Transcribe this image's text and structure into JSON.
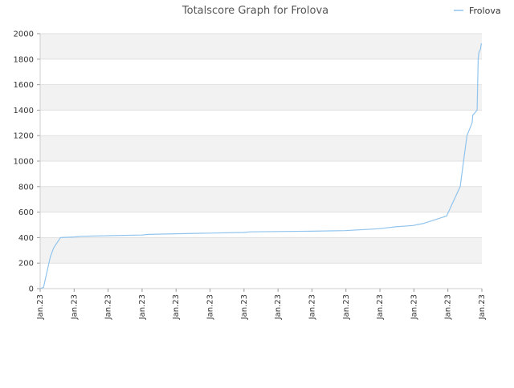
{
  "chart_data": {
    "type": "line",
    "title": "Totalscore Graph for Frolova",
    "xlabel": "",
    "ylabel": "",
    "ylim": [
      0,
      2000
    ],
    "yticks": [
      0,
      200,
      400,
      600,
      800,
      1000,
      1200,
      1400,
      1600,
      1800,
      2000
    ],
    "xtick_labels": [
      "Jan.23",
      "Jan.23",
      "Jan.23",
      "Jan.23",
      "Jan.23",
      "Jan.23",
      "Jan.23",
      "Jan.23",
      "Jan.23",
      "Jan.23",
      "Jan.23",
      "Jan.23",
      "Jan.23",
      "Jan.23"
    ],
    "grid": "horizontal alternating bands",
    "legend_position": "top-right",
    "series": [
      {
        "name": "Frolova",
        "color": "#90c4ee",
        "x": [
          0,
          0.1,
          0.3,
          0.4,
          0.6,
          1.0,
          1.2,
          2.0,
          3.0,
          3.2,
          4.0,
          5.0,
          6.0,
          6.2,
          7.0,
          8.0,
          9.0,
          10.0,
          10.5,
          11.0,
          11.3,
          12.0,
          12.4,
          12.5,
          12.6,
          12.75,
          12.76,
          12.77,
          12.9,
          12.93,
          12.95,
          13.0,
          13.02,
          13.04
        ],
        "values": [
          0,
          10,
          250,
          320,
          400,
          405,
          410,
          415,
          420,
          425,
          430,
          435,
          440,
          445,
          448,
          450,
          455,
          470,
          485,
          495,
          510,
          570,
          800,
          1000,
          1200,
          1300,
          1320,
          1360,
          1400,
          1800,
          1850,
          1880,
          1920,
          1920
        ]
      }
    ]
  }
}
